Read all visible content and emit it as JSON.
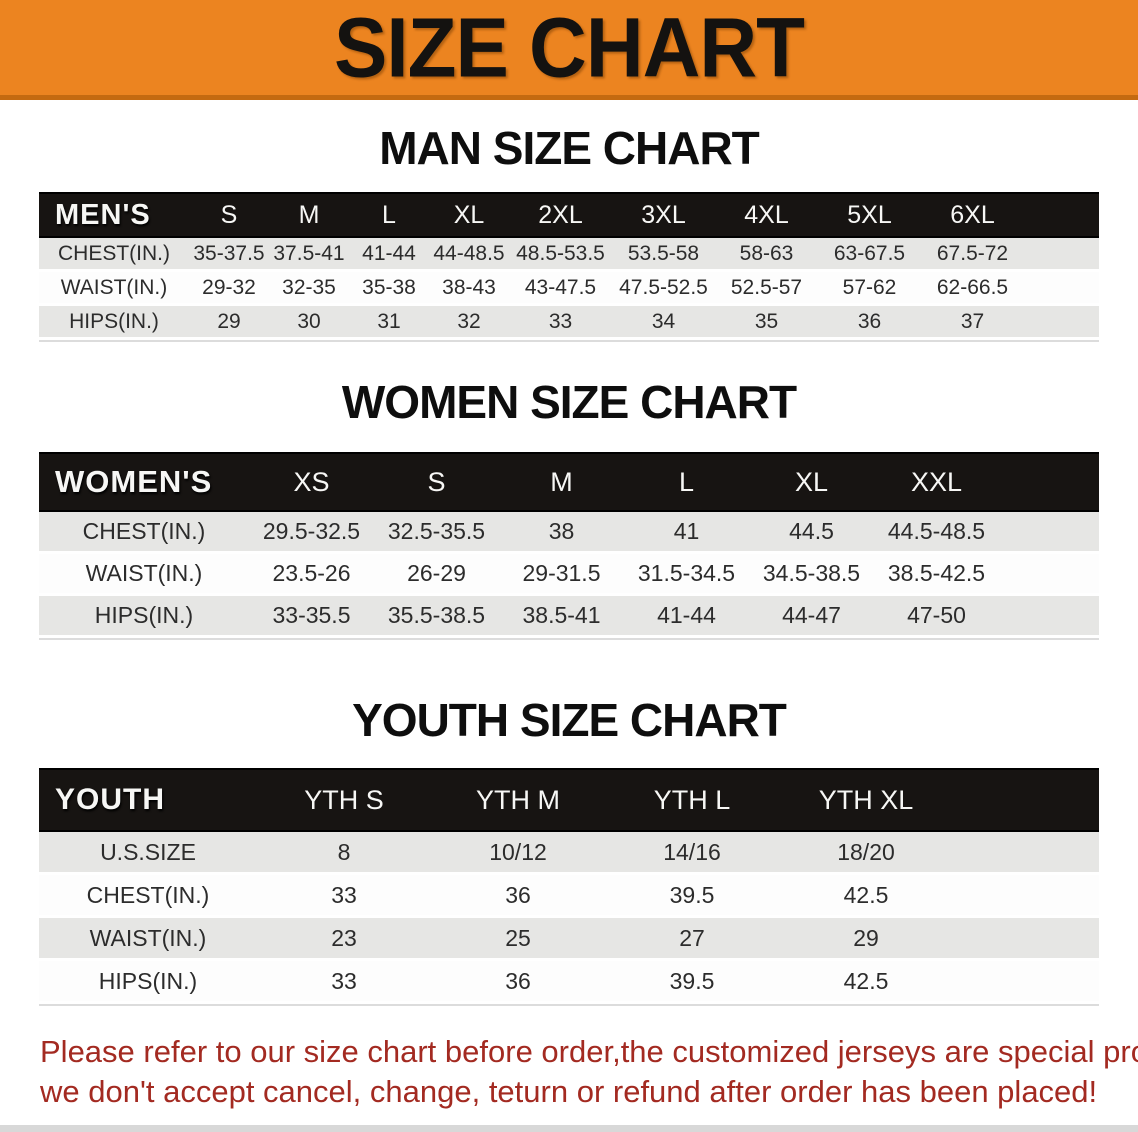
{
  "banner": {
    "title": "SIZE CHART"
  },
  "sections": [
    {
      "heading": "MAN SIZE CHART",
      "table": {
        "label": "MEN'S",
        "columns": [
          "S",
          "M",
          "L",
          "XL",
          "2XL",
          "3XL",
          "4XL",
          "5XL",
          "6XL"
        ],
        "rows": [
          {
            "label": "CHEST(IN.)",
            "values": [
              "35-37.5",
              "37.5-41",
              "41-44",
              "44-48.5",
              "48.5-53.5",
              "53.5-58",
              "58-63",
              "63-67.5",
              "67.5-72"
            ]
          },
          {
            "label": "WAIST(IN.)",
            "values": [
              "29-32",
              "32-35",
              "35-38",
              "38-43",
              "43-47.5",
              "47.5-52.5",
              "52.5-57",
              "57-62",
              "62-66.5"
            ]
          },
          {
            "label": "HIPS(IN.)",
            "values": [
              "29",
              "30",
              "31",
              "32",
              "33",
              "34",
              "35",
              "36",
              "37"
            ]
          }
        ]
      }
    },
    {
      "heading": "WOMEN SIZE CHART",
      "table": {
        "label": "WOMEN'S",
        "columns": [
          "XS",
          "S",
          "M",
          "L",
          "XL",
          "XXL"
        ],
        "rows": [
          {
            "label": "CHEST(IN.)",
            "values": [
              "29.5-32.5",
              "32.5-35.5",
              "38",
              "41",
              "44.5",
              "44.5-48.5"
            ]
          },
          {
            "label": "WAIST(IN.)",
            "values": [
              "23.5-26",
              "26-29",
              "29-31.5",
              "31.5-34.5",
              "34.5-38.5",
              "38.5-42.5"
            ]
          },
          {
            "label": "HIPS(IN.)",
            "values": [
              "33-35.5",
              "35.5-38.5",
              "38.5-41",
              "41-44",
              "44-47",
              "47-50"
            ]
          }
        ]
      }
    },
    {
      "heading": "YOUTH SIZE CHART",
      "table": {
        "label": "YOUTH",
        "columns": [
          "YTH S",
          "YTH M",
          "YTH L",
          "YTH XL"
        ],
        "rows": [
          {
            "label": "U.S.SIZE",
            "values": [
              "8",
              "10/12",
              "14/16",
              "18/20"
            ]
          },
          {
            "label": "CHEST(IN.)",
            "values": [
              "33",
              "36",
              "39.5",
              "42.5"
            ]
          },
          {
            "label": "WAIST(IN.)",
            "values": [
              "23",
              "25",
              "27",
              "29"
            ]
          },
          {
            "label": "HIPS(IN.)",
            "values": [
              "33",
              "36",
              "39.5",
              "42.5"
            ]
          }
        ]
      }
    }
  ],
  "disclaimer": {
    "line1": "Please refer to our size chart before order,the customized jerseys are special products,",
    "line2": "we don't accept cancel, change, teturn or refund after order has been placed!"
  },
  "colors": {
    "banner_orange": "#EC8420",
    "banner_edge": "#C46A10",
    "table_header_black": "#171412",
    "row_gray": "#E6E6E4",
    "disclaimer_red": "#A32A21"
  }
}
